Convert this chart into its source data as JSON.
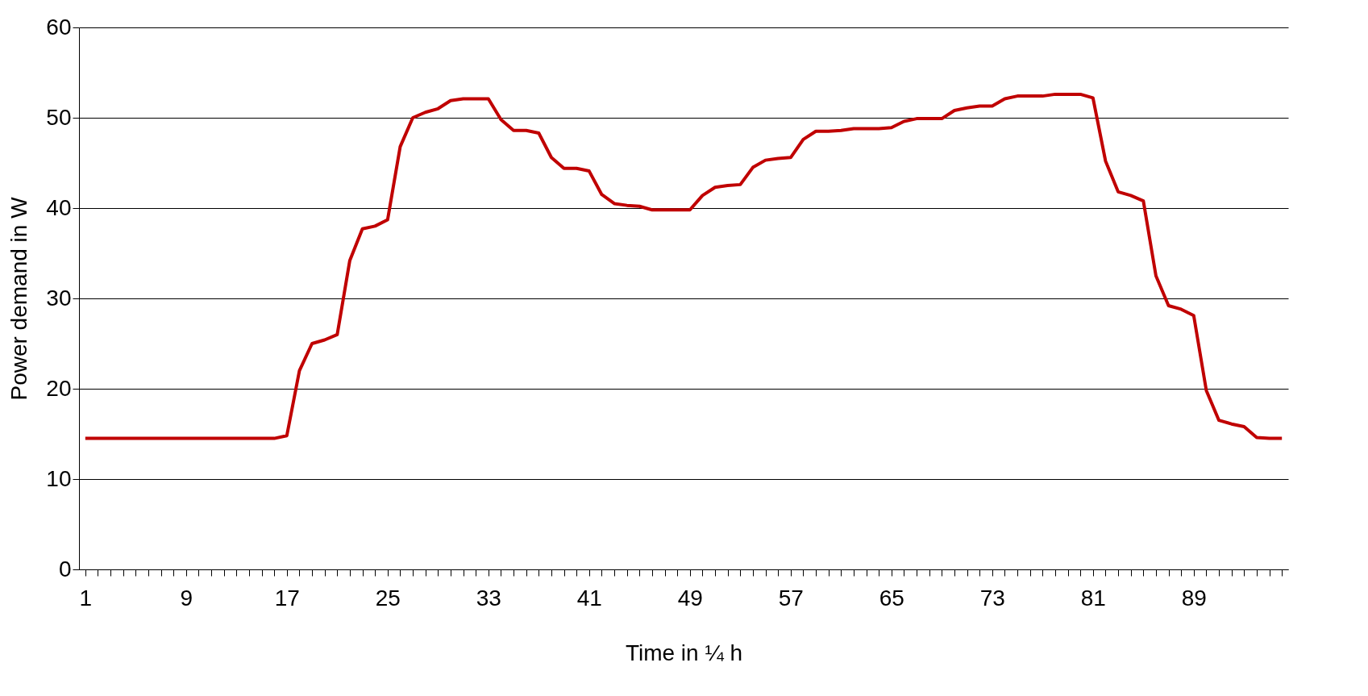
{
  "chart_data": {
    "type": "line",
    "xlabel": "Time in ¼ h",
    "ylabel": "Power demand in W",
    "categories": [
      "1",
      null,
      null,
      null,
      null,
      null,
      null,
      null,
      "9",
      null,
      null,
      null,
      null,
      null,
      null,
      null,
      "17",
      null,
      null,
      null,
      null,
      null,
      null,
      null,
      "25",
      null,
      null,
      null,
      null,
      null,
      null,
      null,
      "33",
      null,
      null,
      null,
      null,
      null,
      null,
      null,
      "41",
      null,
      null,
      null,
      null,
      null,
      null,
      null,
      "49",
      null,
      null,
      null,
      null,
      null,
      null,
      null,
      "57",
      null,
      null,
      null,
      null,
      null,
      null,
      null,
      "65",
      null,
      null,
      null,
      null,
      null,
      null,
      null,
      "73",
      null,
      null,
      null,
      null,
      null,
      null,
      null,
      "81",
      null,
      null,
      null,
      null,
      null,
      null,
      null,
      "89",
      null,
      null,
      null,
      null,
      null,
      null,
      null
    ],
    "series": [
      {
        "color": "#c00000",
        "values": [
          14.5,
          14.5,
          14.5,
          14.5,
          14.5,
          14.5,
          14.5,
          14.5,
          14.5,
          14.5,
          14.5,
          14.5,
          14.5,
          14.5,
          14.5,
          14.5,
          14.8,
          22,
          25,
          25.4,
          26,
          34.2,
          37.7,
          38,
          38.7,
          46.8,
          50,
          50.6,
          51,
          51.9,
          52.1,
          52.1,
          52.1,
          49.8,
          48.6,
          48.6,
          48.3,
          45.6,
          44.4,
          44.4,
          44.1,
          41.5,
          40.5,
          40.3,
          40.2,
          39.8,
          39.8,
          39.8,
          39.8,
          41.4,
          42.3,
          42.5,
          42.6,
          44.5,
          45.3,
          45.5,
          45.6,
          47.6,
          48.5,
          48.5,
          48.6,
          48.8,
          48.8,
          48.8,
          48.9,
          49.6,
          49.9,
          49.9,
          49.9,
          50.8,
          51.1,
          51.3,
          51.3,
          52.1,
          52.4,
          52.4,
          52.4,
          52.6,
          52.6,
          52.6,
          52.2,
          45.2,
          41.8,
          41.4,
          40.8,
          32.5,
          29.2,
          28.8,
          28.1,
          19.8,
          16.5,
          16.1,
          15.8,
          14.6,
          14.5,
          14.5
        ]
      }
    ],
    "ylim": [
      0,
      60
    ],
    "yticks": [
      0,
      10,
      20,
      30,
      40,
      50,
      60
    ],
    "grid": "y",
    "marker": "none",
    "line_style": "solid"
  }
}
